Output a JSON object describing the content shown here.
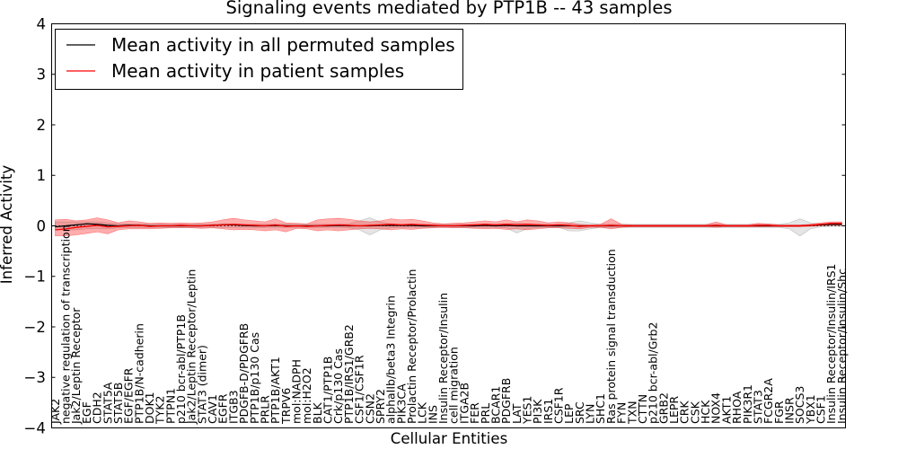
{
  "chart_data": {
    "type": "line",
    "title": "Signaling events mediated by PTP1B -- 43 samples",
    "xlabel": "Cellular Entities",
    "ylabel": "Inferred Activity",
    "ylim": [
      -4,
      4
    ],
    "xlim": [
      -0.34,
      75.34
    ],
    "grid": false,
    "legend_position": "upper left",
    "yticks": [
      -4,
      -3,
      -2,
      -1,
      0,
      1,
      2,
      3,
      4
    ],
    "ytick_labels": [
      "−4",
      "−3",
      "−2",
      "−1",
      "0",
      "1",
      "2",
      "3",
      "4"
    ],
    "categories": [
      "JAK2",
      "negative regulation of transcription",
      "Jak2/Leptin Receptor",
      "EGF",
      "CDH2",
      "STAT5A",
      "STAT5B",
      "EGF/EGFR",
      "PTP1B/N-cadherin",
      "DOK1",
      "TYK2",
      "PTPN1",
      "p210 bcr-abl/PTP1B",
      "Jak2/Leptin Receptor/Leptin",
      "STAT3 (dimer)",
      "CAV1",
      "EGFR",
      "ITGB3",
      "PDGFB-D/PDGFRB",
      "PTP1B/p130 Cas",
      "PRLR",
      "PTP1B/AKT1",
      "TRPV6",
      "mol:NADPH",
      "mol:H2O2",
      "BLK",
      "CAT1/PTP1B",
      "Crk/p130 Cas",
      "PTP1B/IRS1/GRB2",
      "CSF1/CSF1R",
      "CSN2",
      "SPRY2",
      "alphaIIb/beta3 Integrin",
      "PIK3CA",
      "Prolactin Receptor/Prolactin",
      "LCK",
      "INS",
      "Insulin Receptor/Insulin",
      "cell migration",
      "ITGA2B",
      "FER",
      "PRL",
      "BCAR1",
      "PDGFRB",
      "LAT",
      "YES1",
      "PI3K",
      "IRS1",
      "CSF1R",
      "LEP",
      "SRC",
      "LYN",
      "SHC1",
      "Ras protein signal transduction",
      "FYN",
      "TXN",
      "CTTN",
      "p210 bcr-abl/Grb2",
      "GRB2",
      "LEPR",
      "CRK",
      "CSK",
      "HCK",
      "NOX4",
      "AKT1",
      "RHOA",
      "PIK3R1",
      "STAT3",
      "FCGR2A",
      "FGR",
      "INSR",
      "SOCS3",
      "YBX1",
      "CSF1",
      "Insulin Receptor/Insulin/IRS1",
      "Insulin Receptor/Insulin/Shc"
    ],
    "series": [
      {
        "name": "Mean activity in all permuted samples",
        "color": "#000000",
        "band_color": "#888888",
        "values": [
          -0.02,
          0.0,
          0.02,
          0.04,
          0.03,
          0.01,
          0.0,
          0.01,
          0.01,
          0.0,
          0.0,
          0.0,
          0.0,
          0.0,
          0.0,
          0.01,
          0.02,
          0.02,
          0.01,
          0.0,
          0.0,
          0.01,
          0.0,
          0.0,
          0.0,
          0.0,
          0.0,
          0.01,
          0.0,
          0.0,
          0.0,
          0.01,
          0.01,
          0.01,
          0.01,
          0.0,
          0.0,
          0.0,
          0.0,
          0.0,
          0.0,
          0.01,
          0.0,
          0.01,
          0.0,
          0.0,
          0.0,
          0.0,
          0.0,
          0.0,
          0.0,
          0.0,
          0.0,
          0.0,
          0.0,
          0.0,
          0.0,
          0.0,
          0.0,
          0.0,
          0.0,
          0.0,
          0.0,
          0.0,
          0.0,
          0.0,
          0.0,
          0.0,
          0.0,
          0.0,
          0.0,
          0.0,
          0.01,
          0.02,
          0.03,
          0.03
        ],
        "band_upper": [
          0.08,
          0.08,
          0.08,
          0.08,
          0.08,
          0.06,
          0.04,
          0.04,
          0.04,
          0.03,
          0.03,
          0.03,
          0.03,
          0.03,
          0.03,
          0.03,
          0.04,
          0.04,
          0.03,
          0.03,
          0.03,
          0.03,
          0.03,
          0.03,
          0.03,
          0.03,
          0.03,
          0.03,
          0.04,
          0.1,
          0.16,
          0.08,
          0.04,
          0.03,
          0.03,
          0.03,
          0.03,
          0.03,
          0.03,
          0.03,
          0.03,
          0.03,
          0.03,
          0.04,
          0.05,
          0.04,
          0.03,
          0.03,
          0.03,
          0.06,
          0.1,
          0.06,
          0.03,
          0.03,
          0.03,
          0.03,
          0.03,
          0.03,
          0.03,
          0.03,
          0.03,
          0.03,
          0.03,
          0.03,
          0.03,
          0.03,
          0.03,
          0.03,
          0.03,
          0.03,
          0.06,
          0.14,
          0.06,
          0.04,
          0.05,
          0.05
        ],
        "band_lower": [
          -0.08,
          -0.08,
          -0.08,
          -0.06,
          -0.06,
          -0.06,
          -0.04,
          -0.04,
          -0.04,
          -0.03,
          -0.03,
          -0.03,
          -0.03,
          -0.03,
          -0.03,
          -0.03,
          -0.03,
          -0.03,
          -0.03,
          -0.03,
          -0.03,
          -0.03,
          -0.03,
          -0.03,
          -0.03,
          -0.03,
          -0.03,
          -0.03,
          -0.04,
          -0.08,
          -0.18,
          -0.08,
          -0.04,
          -0.03,
          -0.03,
          -0.03,
          -0.03,
          -0.03,
          -0.03,
          -0.03,
          -0.03,
          -0.03,
          -0.03,
          -0.04,
          -0.14,
          -0.06,
          -0.03,
          -0.03,
          -0.03,
          -0.1,
          -0.1,
          -0.06,
          -0.03,
          -0.03,
          -0.03,
          -0.03,
          -0.03,
          -0.03,
          -0.03,
          -0.03,
          -0.03,
          -0.03,
          -0.03,
          -0.03,
          -0.03,
          -0.03,
          -0.03,
          -0.03,
          -0.03,
          -0.03,
          -0.06,
          -0.2,
          -0.06,
          -0.02,
          -0.01,
          -0.01
        ]
      },
      {
        "name": "Mean activity in patient samples",
        "color": "#ff0000",
        "band_color": "#ff0000",
        "values": [
          -0.08,
          -0.06,
          -0.03,
          -0.01,
          0.01,
          -0.02,
          -0.01,
          0.0,
          0.01,
          -0.01,
          0.0,
          0.0,
          0.01,
          0.0,
          0.0,
          0.01,
          0.02,
          0.03,
          0.02,
          0.01,
          0.0,
          0.02,
          -0.01,
          0.0,
          -0.01,
          0.0,
          0.01,
          0.02,
          0.01,
          0.0,
          0.01,
          0.02,
          0.03,
          0.02,
          0.03,
          0.02,
          0.01,
          0.0,
          0.0,
          0.01,
          0.02,
          0.03,
          0.02,
          0.03,
          0.02,
          0.03,
          0.02,
          0.01,
          0.02,
          0.01,
          -0.01,
          0.0,
          0.0,
          0.01,
          0.0,
          0.0,
          0.0,
          0.0,
          0.0,
          0.0,
          0.0,
          0.0,
          0.0,
          0.01,
          0.0,
          0.0,
          0.0,
          0.01,
          0.01,
          0.0,
          0.0,
          0.0,
          0.01,
          0.03,
          0.05,
          0.05
        ],
        "band_upper": [
          0.12,
          0.13,
          0.1,
          0.12,
          0.16,
          0.12,
          0.06,
          0.1,
          0.08,
          0.05,
          0.06,
          0.05,
          0.06,
          0.05,
          0.06,
          0.08,
          0.12,
          0.15,
          0.12,
          0.1,
          0.08,
          0.14,
          0.06,
          0.05,
          0.04,
          0.12,
          0.14,
          0.15,
          0.13,
          0.1,
          0.08,
          0.1,
          0.14,
          0.12,
          0.13,
          0.1,
          0.06,
          0.04,
          0.05,
          0.06,
          0.08,
          0.1,
          0.08,
          0.12,
          0.08,
          0.12,
          0.1,
          0.06,
          0.08,
          0.06,
          0.03,
          0.02,
          0.03,
          0.14,
          0.03,
          0.02,
          0.02,
          0.02,
          0.02,
          0.02,
          0.02,
          0.02,
          0.02,
          0.08,
          0.02,
          0.02,
          0.02,
          0.05,
          0.04,
          0.02,
          0.02,
          0.02,
          0.03,
          0.06,
          0.08,
          0.08
        ],
        "band_lower": [
          -0.2,
          -0.2,
          -0.18,
          -0.15,
          -0.12,
          -0.16,
          -0.08,
          -0.06,
          -0.06,
          -0.06,
          -0.05,
          -0.04,
          -0.04,
          -0.04,
          -0.05,
          -0.04,
          -0.06,
          -0.08,
          -0.07,
          -0.08,
          -0.1,
          -0.08,
          -0.12,
          -0.05,
          -0.06,
          -0.1,
          -0.08,
          -0.1,
          -0.08,
          -0.06,
          -0.05,
          -0.06,
          -0.08,
          -0.06,
          -0.07,
          -0.05,
          -0.04,
          -0.03,
          -0.04,
          -0.04,
          -0.05,
          -0.06,
          -0.05,
          -0.07,
          -0.06,
          -0.08,
          -0.06,
          -0.04,
          -0.04,
          -0.05,
          -0.06,
          -0.03,
          -0.03,
          -0.06,
          -0.03,
          -0.02,
          -0.02,
          -0.02,
          -0.02,
          -0.02,
          -0.02,
          -0.02,
          -0.02,
          -0.03,
          -0.02,
          -0.02,
          -0.02,
          -0.02,
          -0.02,
          -0.02,
          -0.02,
          -0.02,
          -0.01,
          0.0,
          0.01,
          0.01
        ]
      }
    ]
  }
}
